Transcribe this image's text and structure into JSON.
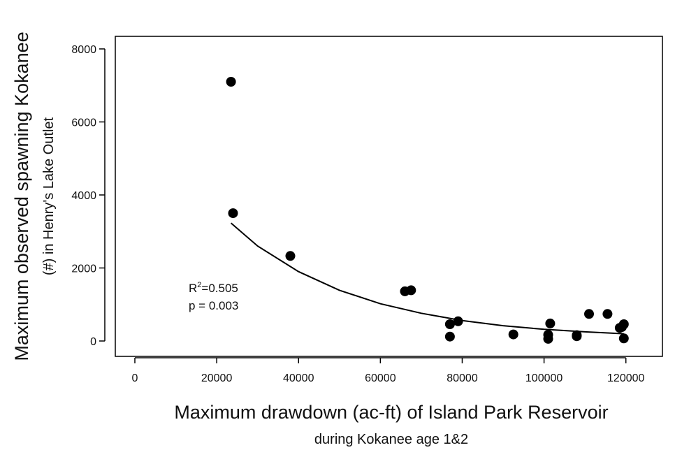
{
  "chart_data": {
    "type": "scatter",
    "xlabel": "Maximum drawdown (ac-ft) of Island Park Reservoir",
    "xlabel_sub": "during Kokanee age 1&2",
    "ylabel": "Maximum observed spawning Kokanee",
    "ylabel_sub": "(#) in Henry's Lake Outlet",
    "xlim": [
      0,
      125000
    ],
    "ylim": [
      0,
      8000
    ],
    "xticks": [
      "0",
      "20000",
      "40000",
      "60000",
      "80000",
      "100000",
      "120000"
    ],
    "xtick_values": [
      0,
      20000,
      40000,
      60000,
      80000,
      100000,
      120000
    ],
    "yticks": [
      "0",
      "2000",
      "4000",
      "6000",
      "8000"
    ],
    "ytick_values": [
      0,
      2000,
      4000,
      6000,
      8000
    ],
    "grid": false,
    "marker_color": "#000000",
    "points": [
      {
        "x": 23500,
        "y": 7100
      },
      {
        "x": 24000,
        "y": 3500
      },
      {
        "x": 38000,
        "y": 2330
      },
      {
        "x": 66000,
        "y": 1360
      },
      {
        "x": 67500,
        "y": 1390
      },
      {
        "x": 77000,
        "y": 460
      },
      {
        "x": 77000,
        "y": 120
      },
      {
        "x": 79000,
        "y": 540
      },
      {
        "x": 92500,
        "y": 180
      },
      {
        "x": 101000,
        "y": 170
      },
      {
        "x": 101000,
        "y": 60
      },
      {
        "x": 101500,
        "y": 480
      },
      {
        "x": 108000,
        "y": 130
      },
      {
        "x": 108000,
        "y": 160
      },
      {
        "x": 111000,
        "y": 740
      },
      {
        "x": 115500,
        "y": 740
      },
      {
        "x": 118500,
        "y": 360
      },
      {
        "x": 119000,
        "y": 380
      },
      {
        "x": 119500,
        "y": 460
      },
      {
        "x": 119500,
        "y": 70
      }
    ],
    "fit_curve": {
      "type": "exponential",
      "x": [
        23500,
        30000,
        40000,
        50000,
        60000,
        70000,
        80000,
        90000,
        100000,
        110000,
        119500
      ],
      "y": [
        3230,
        2600,
        1900,
        1390,
        1020,
        760,
        560,
        420,
        320,
        250,
        200
      ]
    },
    "annotation": {
      "r2_prefix": "R",
      "r2_sup": "2",
      "r2_value": "=0.505",
      "p_text": "p = 0.003"
    }
  }
}
